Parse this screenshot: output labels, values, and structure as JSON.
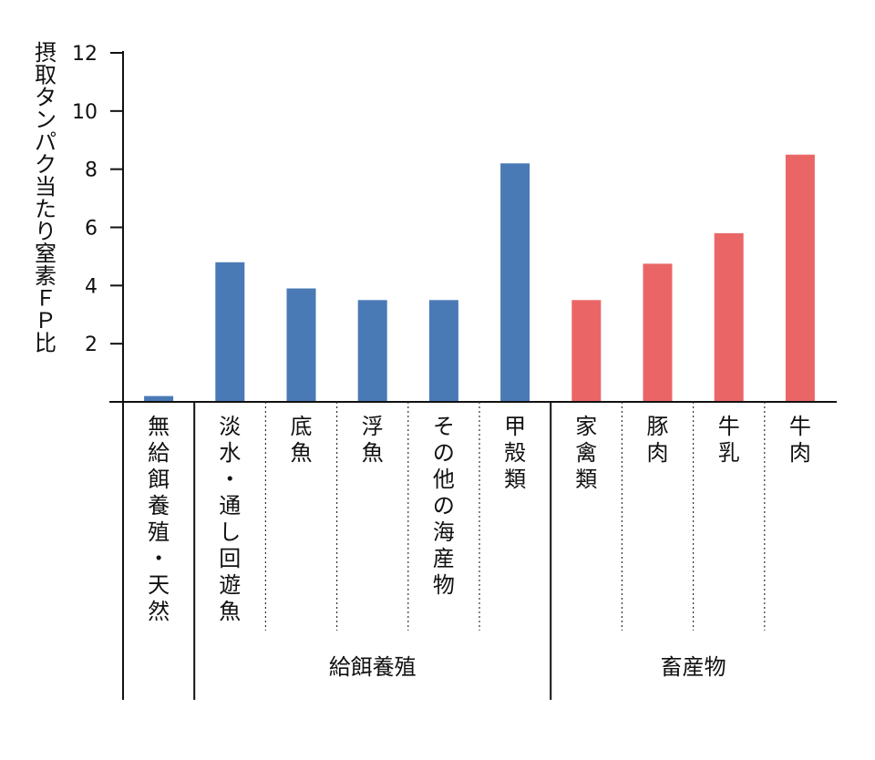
{
  "chart_data": {
    "type": "bar",
    "ylabel": "摂取タンパク当たり窒素ＦＰ比",
    "ylim": [
      0,
      12
    ],
    "yticks": [
      2,
      4,
      6,
      8,
      10,
      12
    ],
    "categories": [
      "無給餌養殖・天然",
      "淡水・通し回遊魚",
      "底魚",
      "浮魚",
      "その他の海産物",
      "甲殻類",
      "家禽類",
      "豚肉",
      "牛乳",
      "牛肉"
    ],
    "values": [
      0.2,
      4.8,
      3.9,
      3.5,
      3.5,
      8.2,
      3.5,
      4.75,
      5.8,
      8.5
    ],
    "bar_colors": [
      "#4a7ab5",
      "#4a7ab5",
      "#4a7ab5",
      "#4a7ab5",
      "#4a7ab5",
      "#4a7ab5",
      "#ea6666",
      "#ea6666",
      "#ea6666",
      "#ea6666"
    ],
    "groups": [
      {
        "label": "",
        "start": 0,
        "end": 0
      },
      {
        "label": "給餌養殖",
        "start": 1,
        "end": 5
      },
      {
        "label": "畜産物",
        "start": 6,
        "end": 9
      }
    ],
    "grid": false,
    "colors": {
      "aquaculture": "#4a7ab5",
      "livestock": "#ea6666"
    }
  }
}
